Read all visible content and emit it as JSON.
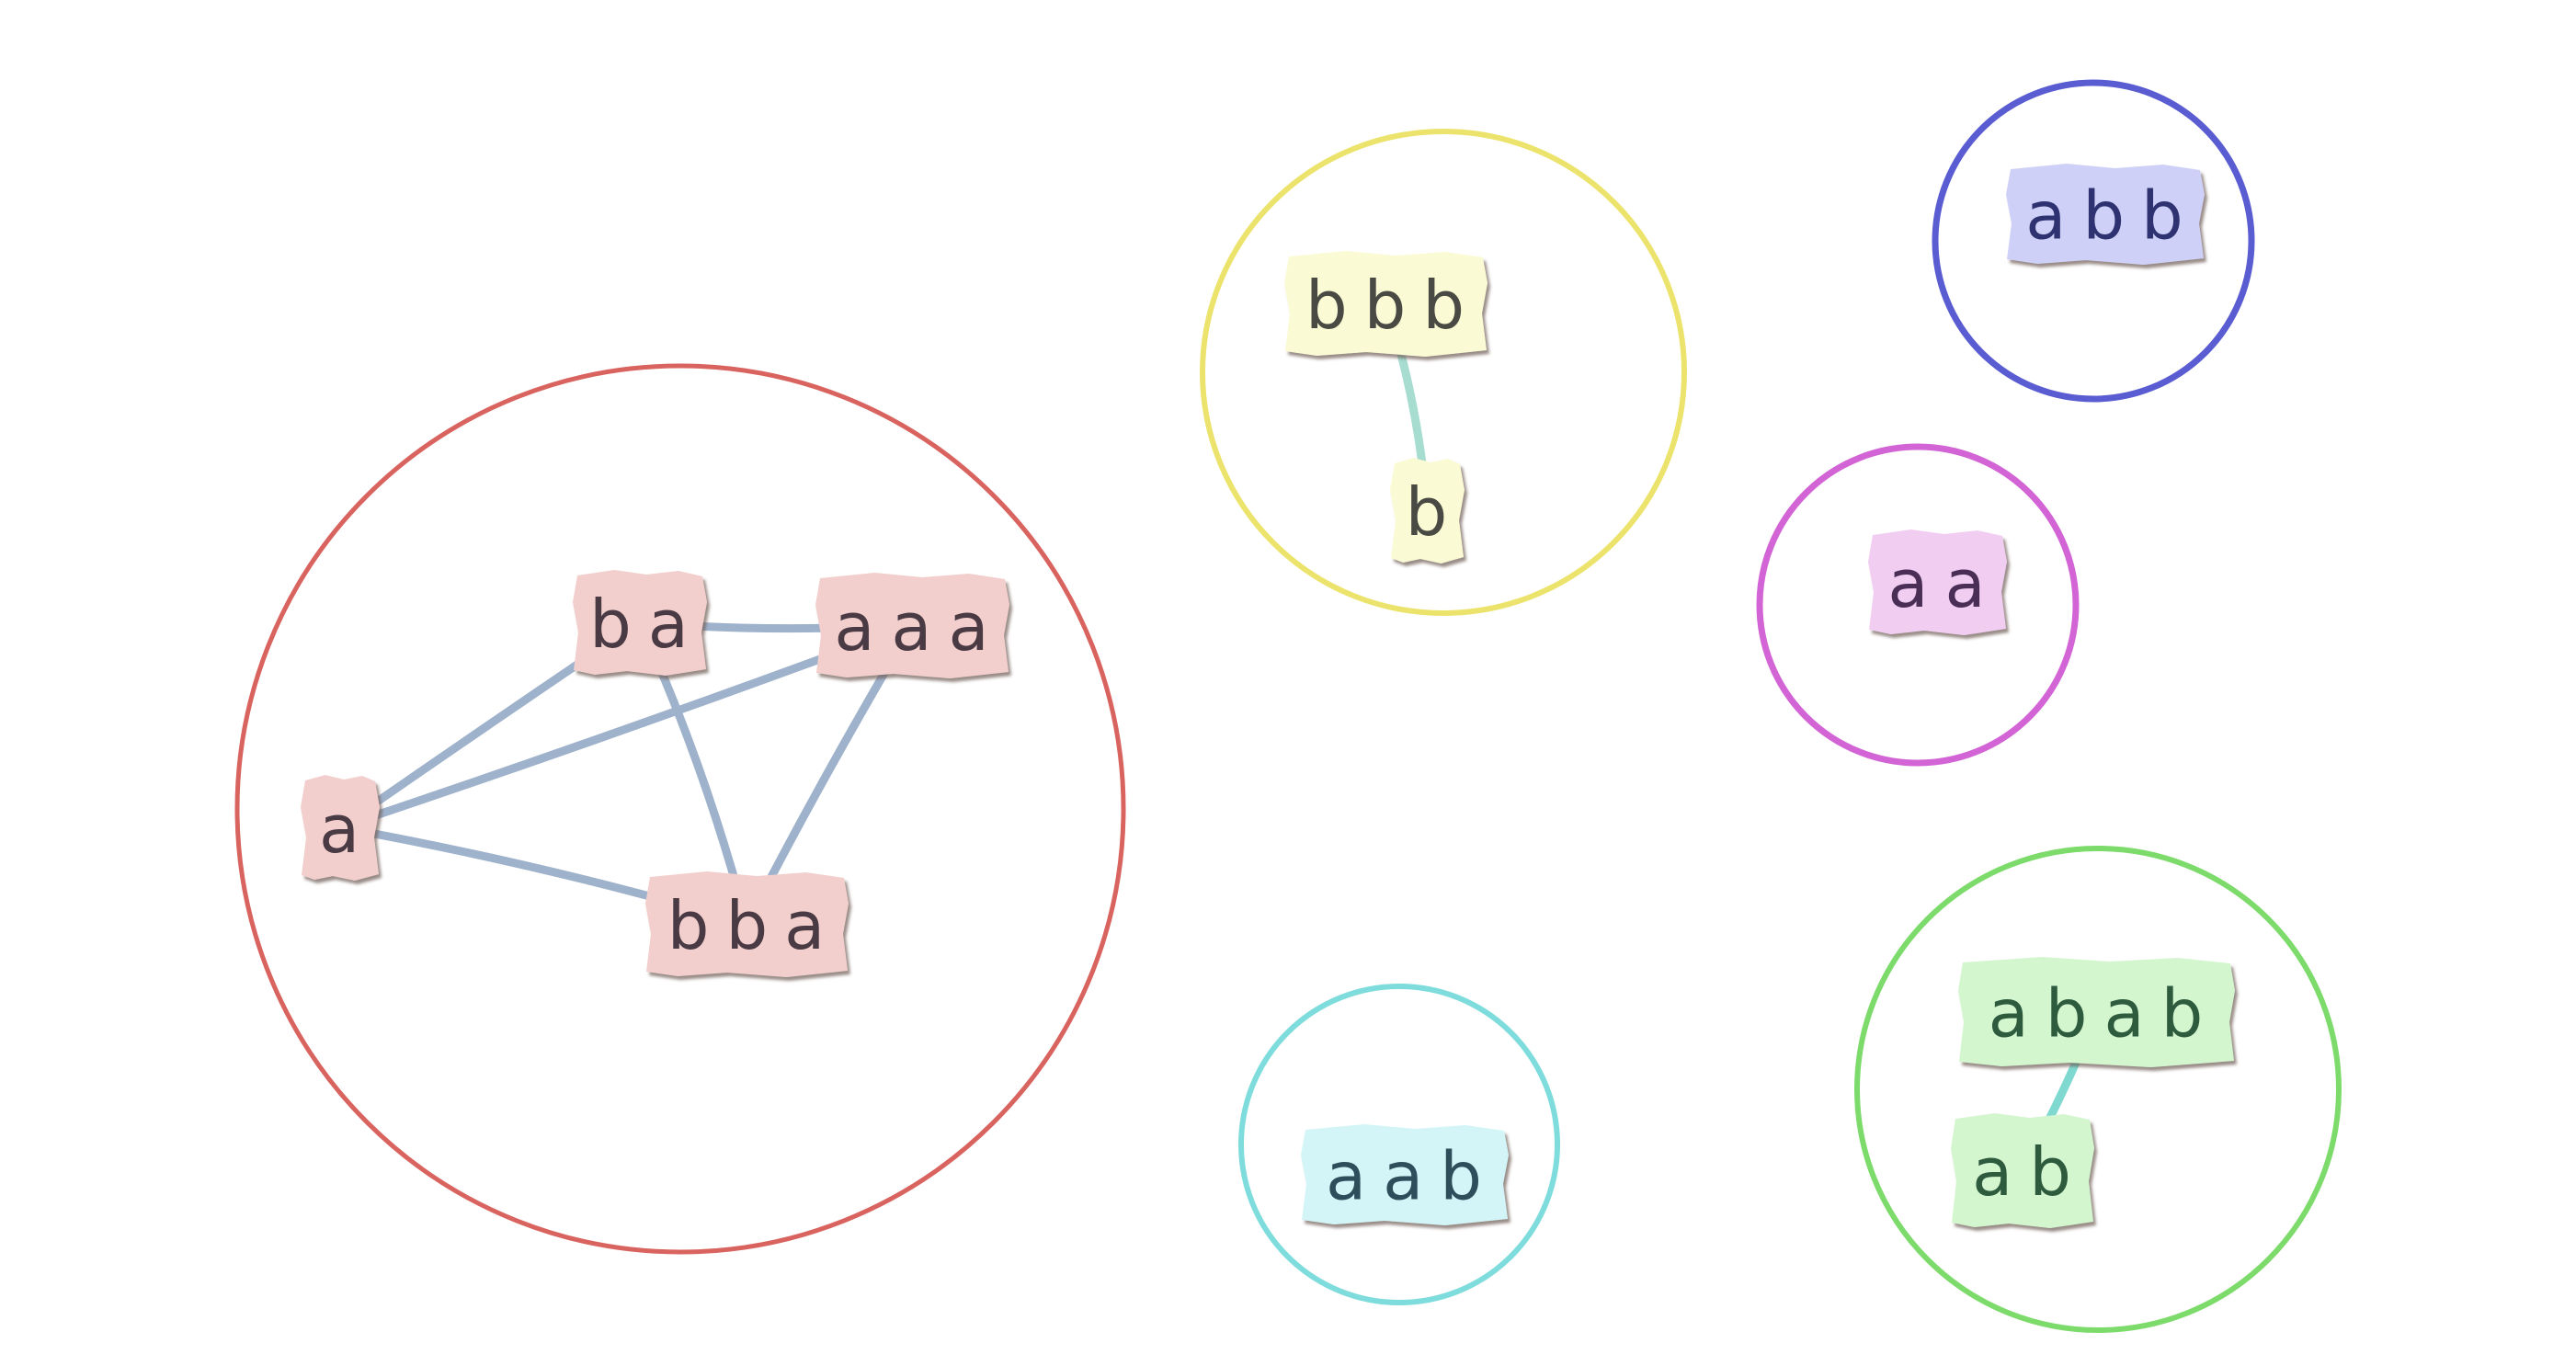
{
  "clusters": [
    {
      "id": "red",
      "ring_color": "#d9635e",
      "note_color": "#f2cfcc",
      "text_color": "#4a3a44",
      "edge_color": "#9fb2cc",
      "nodes": [
        {
          "id": "ba",
          "label": "ba"
        },
        {
          "id": "aaa",
          "label": "aaa"
        },
        {
          "id": "a",
          "label": "a"
        },
        {
          "id": "bba",
          "label": "bba"
        }
      ],
      "edges": [
        [
          "a",
          "ba"
        ],
        [
          "a",
          "aaa"
        ],
        [
          "a",
          "bba"
        ],
        [
          "ba",
          "aaa"
        ],
        [
          "ba",
          "bba"
        ],
        [
          "aaa",
          "bba"
        ]
      ]
    },
    {
      "id": "yellow",
      "ring_color": "#ece36c",
      "note_color": "#fafbd4",
      "text_color": "#4a4a44",
      "edge_color": "#a7dcd0",
      "nodes": [
        {
          "id": "bbb",
          "label": "bbb"
        },
        {
          "id": "b",
          "label": "b"
        }
      ],
      "edges": [
        [
          "bbb",
          "b"
        ]
      ]
    },
    {
      "id": "blue",
      "ring_color": "#5a5cd1",
      "note_color": "#cfd0f7",
      "text_color": "#2e3270",
      "edge_color": "#9fb2cc",
      "nodes": [
        {
          "id": "abb",
          "label": "abb"
        }
      ],
      "edges": []
    },
    {
      "id": "magenta",
      "ring_color": "#d264d6",
      "note_color": "#f1cdf2",
      "text_color": "#4a2e55",
      "edge_color": "#9fb2cc",
      "nodes": [
        {
          "id": "aa",
          "label": "aa"
        }
      ],
      "edges": []
    },
    {
      "id": "cyan",
      "ring_color": "#7fdcdc",
      "note_color": "#d3f5f7",
      "text_color": "#2e4e5c",
      "edge_color": "#9fb2cc",
      "nodes": [
        {
          "id": "aab",
          "label": "aab"
        }
      ],
      "edges": []
    },
    {
      "id": "green",
      "ring_color": "#7cdb6a",
      "note_color": "#d3f6cf",
      "text_color": "#2e5a3e",
      "edge_color": "#7fd9d0",
      "nodes": [
        {
          "id": "abab",
          "label": "abab"
        },
        {
          "id": "ab",
          "label": "ab"
        }
      ],
      "edges": [
        [
          "abab",
          "ab"
        ]
      ]
    }
  ]
}
